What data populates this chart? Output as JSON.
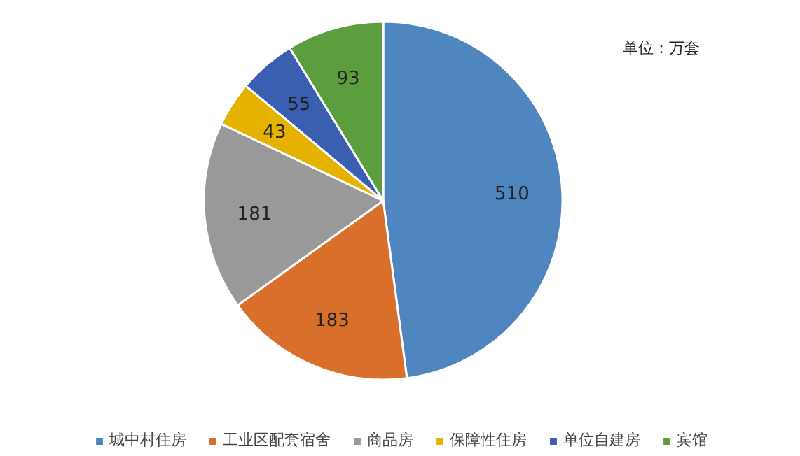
{
  "chart_data": {
    "type": "pie",
    "categories": [
      "城中村住房",
      "工业区配套宿舍",
      "商品房",
      "保障性住房",
      "单位自建房",
      "宾馆"
    ],
    "values": [
      510,
      183,
      181,
      43,
      55,
      93
    ],
    "colors": [
      "#4f86c0",
      "#d8702c",
      "#999999",
      "#e5b200",
      "#3a5fb0",
      "#5c9e3e"
    ],
    "data_labels": true,
    "legend": "bottom",
    "annotations": [
      "单位：万套"
    ]
  }
}
